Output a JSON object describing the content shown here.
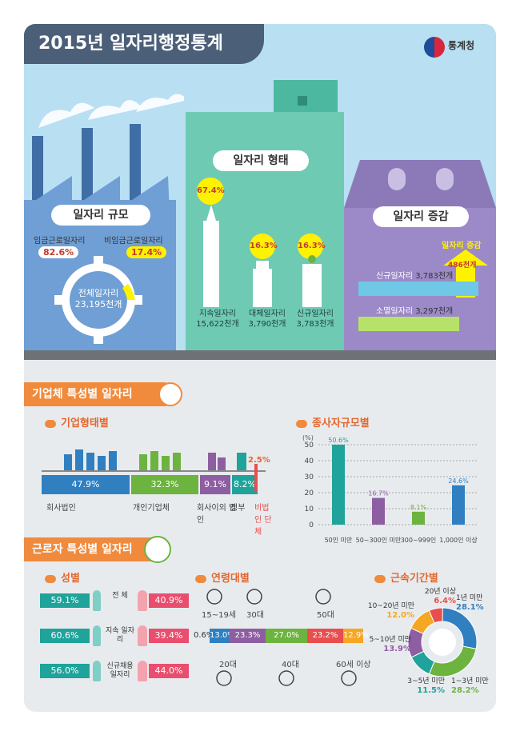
{
  "header": {
    "title": "2015년 일자리행정통계",
    "logo_text": "통계청"
  },
  "scale": {
    "title": "일자리 규모",
    "wage_label": "임금근로일자리",
    "wage_pct": "82.6%",
    "nonwage_label": "비임금근로일자리",
    "nonwage_pct": "17.4%",
    "total_label": "전체일자리",
    "total_value": "23,195천개"
  },
  "form": {
    "title": "일자리 형태",
    "items": [
      {
        "pct": "67.4%",
        "label": "지속일자리",
        "value": "15,622천개"
      },
      {
        "pct": "16.3%",
        "label": "대체일자리",
        "value": "3,790천개"
      },
      {
        "pct": "16.3%",
        "label": "신규일자리",
        "value": "3,783천개"
      }
    ]
  },
  "change": {
    "title": "일자리 증감",
    "increase_label": "일자리 증감",
    "increase_value": "486천개",
    "new_label": "신규일자리",
    "new_value": "3,783천개",
    "lost_label": "소멸일자리",
    "lost_value": "3,297천개"
  },
  "enterprise": {
    "section_title": "기업체 특성별 일자리",
    "type_title": "기업형태별",
    "types": [
      {
        "label": "회사법인",
        "value": "47.9%",
        "color": "#2f7fc1"
      },
      {
        "label": "개인기업체",
        "value": "32.3%",
        "color": "#6db33f"
      },
      {
        "label": "회사이외 법인",
        "value": "9.1%",
        "color": "#8e5ea2"
      },
      {
        "label": "정부",
        "value": "8.2%",
        "color": "#1fa39a"
      },
      {
        "label": "비법인 단체",
        "value": "2.5%",
        "color": "#e94e4e"
      }
    ],
    "size_title": "종사자규모별",
    "size_unit": "(%)"
  },
  "chart_data": {
    "type": "bar",
    "categories": [
      "50인 미만",
      "50~300인 미만",
      "300~999인",
      "1,000인 이상"
    ],
    "values": [
      50.6,
      16.7,
      8.1,
      24.6
    ],
    "value_labels": [
      "50.6%",
      "16.7%",
      "8.1%",
      "24.6%"
    ],
    "ylim": [
      0,
      50
    ],
    "yticks": [
      "0",
      "10",
      "20",
      "30",
      "40",
      "50"
    ],
    "colors": [
      "#1fa39a",
      "#8e5ea2",
      "#6db33f",
      "#2f7fc1"
    ],
    "grid": true
  },
  "worker": {
    "section_title": "근로자 특성별 일자리",
    "gender_title": "성별",
    "gender": [
      {
        "male": "59.1%",
        "label": "전 체",
        "female": "40.9%"
      },
      {
        "male": "60.6%",
        "label": "지속 일자리",
        "female": "39.4%"
      },
      {
        "male": "56.0%",
        "label": "신규채용 일자리",
        "female": "44.0%"
      }
    ],
    "age_title": "연령대별",
    "age_segments": [
      {
        "value": "0.6%",
        "fraction": 0.006,
        "color": "#8a8a8a"
      },
      {
        "value": "13.0%",
        "fraction": 0.13,
        "color": "#2f7fc1"
      },
      {
        "value": "23.3%",
        "fraction": 0.233,
        "color": "#8e5ea2"
      },
      {
        "value": "27.0%",
        "fraction": 0.27,
        "color": "#6db33f"
      },
      {
        "value": "23.2%",
        "fraction": 0.232,
        "color": "#e94e4e"
      },
      {
        "value": "12.9%",
        "fraction": 0.129,
        "color": "#f5a623"
      }
    ],
    "age_labels": {
      "teen": "15~19세",
      "twenties": "20대",
      "thirties": "30대",
      "forties": "40대",
      "fifties": "50대",
      "sixties": "60세 이상"
    },
    "tenure_title": "근속기간별",
    "tenure": [
      {
        "label": "1년 미만",
        "value": "28.1%",
        "fraction": 0.281,
        "color": "#2f7fc1"
      },
      {
        "label": "1~3년 미만",
        "value": "28.2%",
        "fraction": 0.282,
        "color": "#6db33f"
      },
      {
        "label": "3~5년 미만",
        "value": "11.5%",
        "fraction": 0.115,
        "color": "#1fa39a"
      },
      {
        "label": "5~10년 미만",
        "value": "13.9%",
        "fraction": 0.139,
        "color": "#8e5ea2"
      },
      {
        "label": "10~20년 미만",
        "value": "12.0%",
        "fraction": 0.12,
        "color": "#f5a623"
      },
      {
        "label": "20년 이상",
        "value": "6.4%",
        "fraction": 0.064,
        "color": "#e94e4e"
      }
    ]
  }
}
